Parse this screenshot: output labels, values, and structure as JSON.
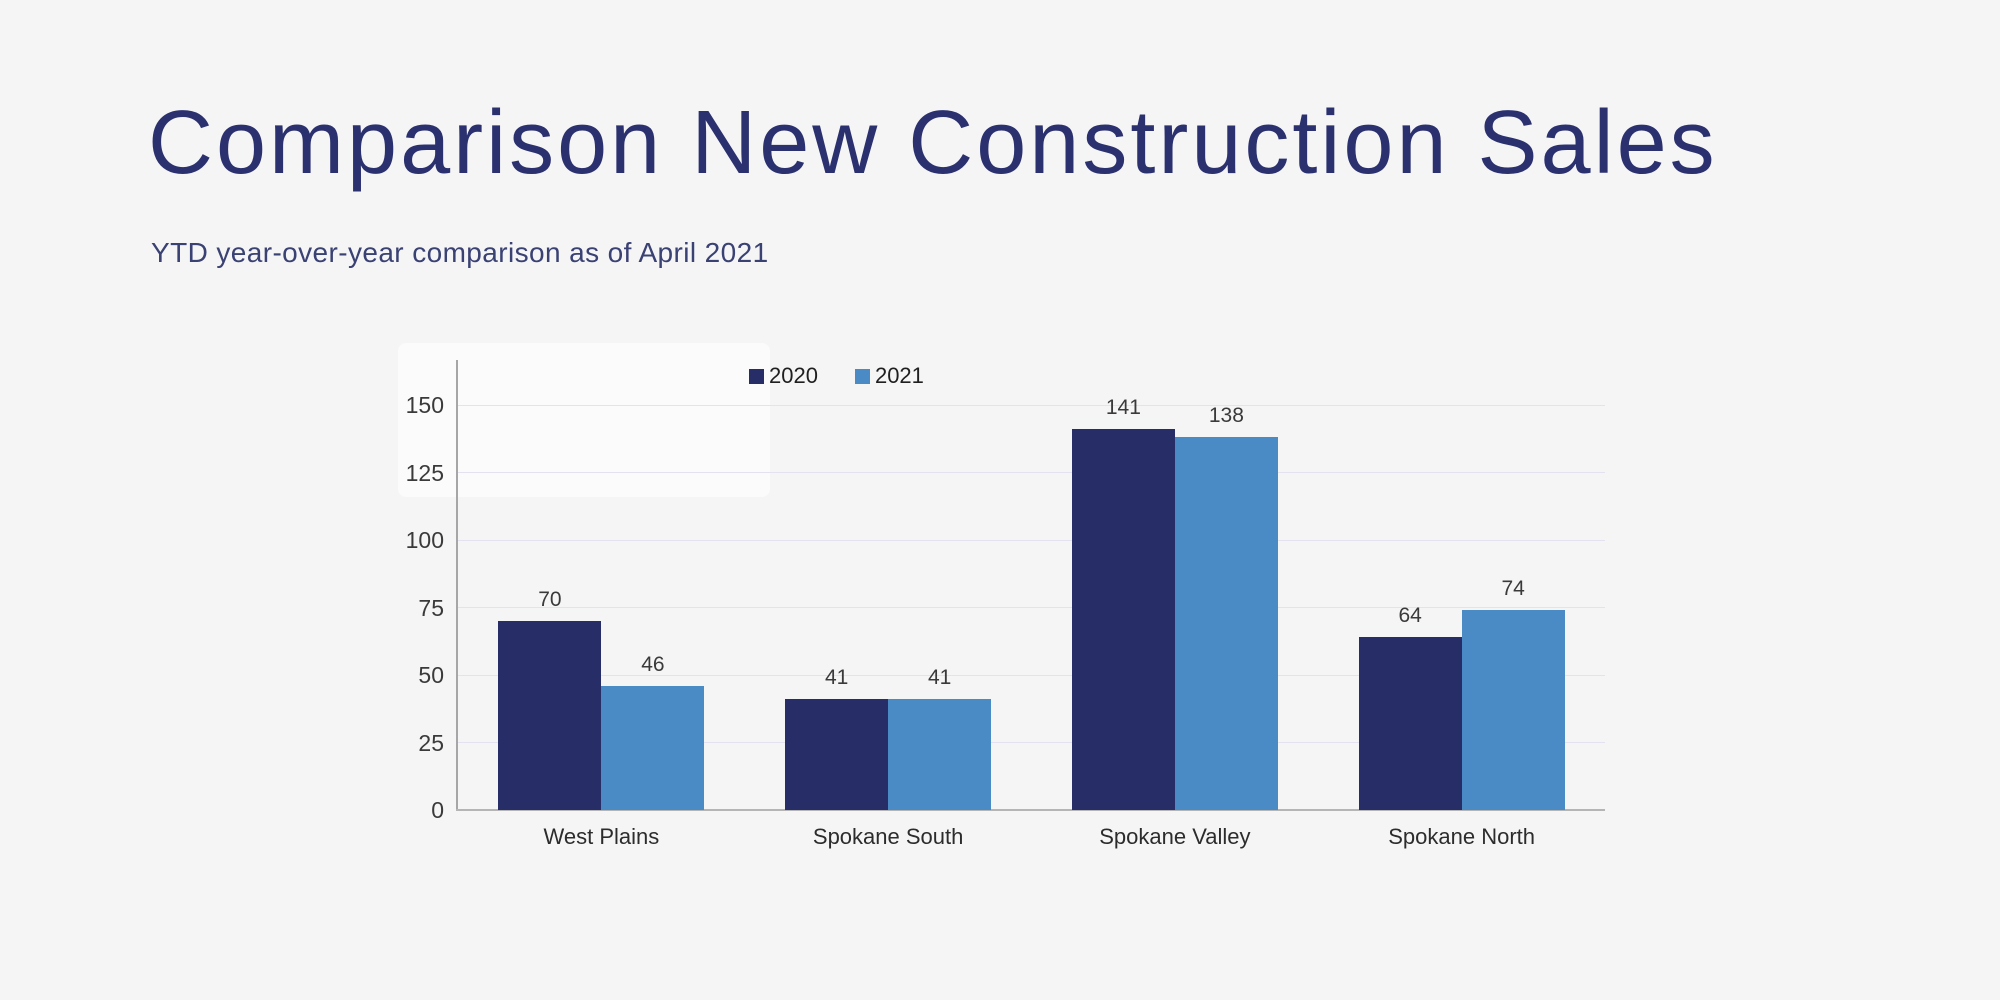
{
  "page": {
    "title": "Comparison New Construction Sales",
    "subtitle": "YTD year-over-year comparison as of April 2021",
    "background_color": "#f5f5f6",
    "title_color": "#2b316e",
    "subtitle_color": "#3a4173"
  },
  "chart_data": {
    "type": "bar",
    "title": "",
    "xlabel": "",
    "ylabel": "",
    "categories": [
      "West Plains",
      "Spokane South",
      "Spokane Valley",
      "Spokane North"
    ],
    "series": [
      {
        "name": "2020",
        "color": "#272d67",
        "values": [
          70,
          41,
          141,
          64
        ]
      },
      {
        "name": "2021",
        "color": "#4a8bc6",
        "values": [
          46,
          41,
          138,
          74
        ]
      }
    ],
    "ylim": [
      0,
      150
    ],
    "yticks": [
      0,
      25,
      50,
      75,
      100,
      125,
      150
    ],
    "grid": true,
    "legend_position": "top",
    "value_labels": true,
    "gridline_color": "#e3e3ef",
    "axis_color": "#a6a6a6",
    "label_color": "#3a3a3a"
  }
}
